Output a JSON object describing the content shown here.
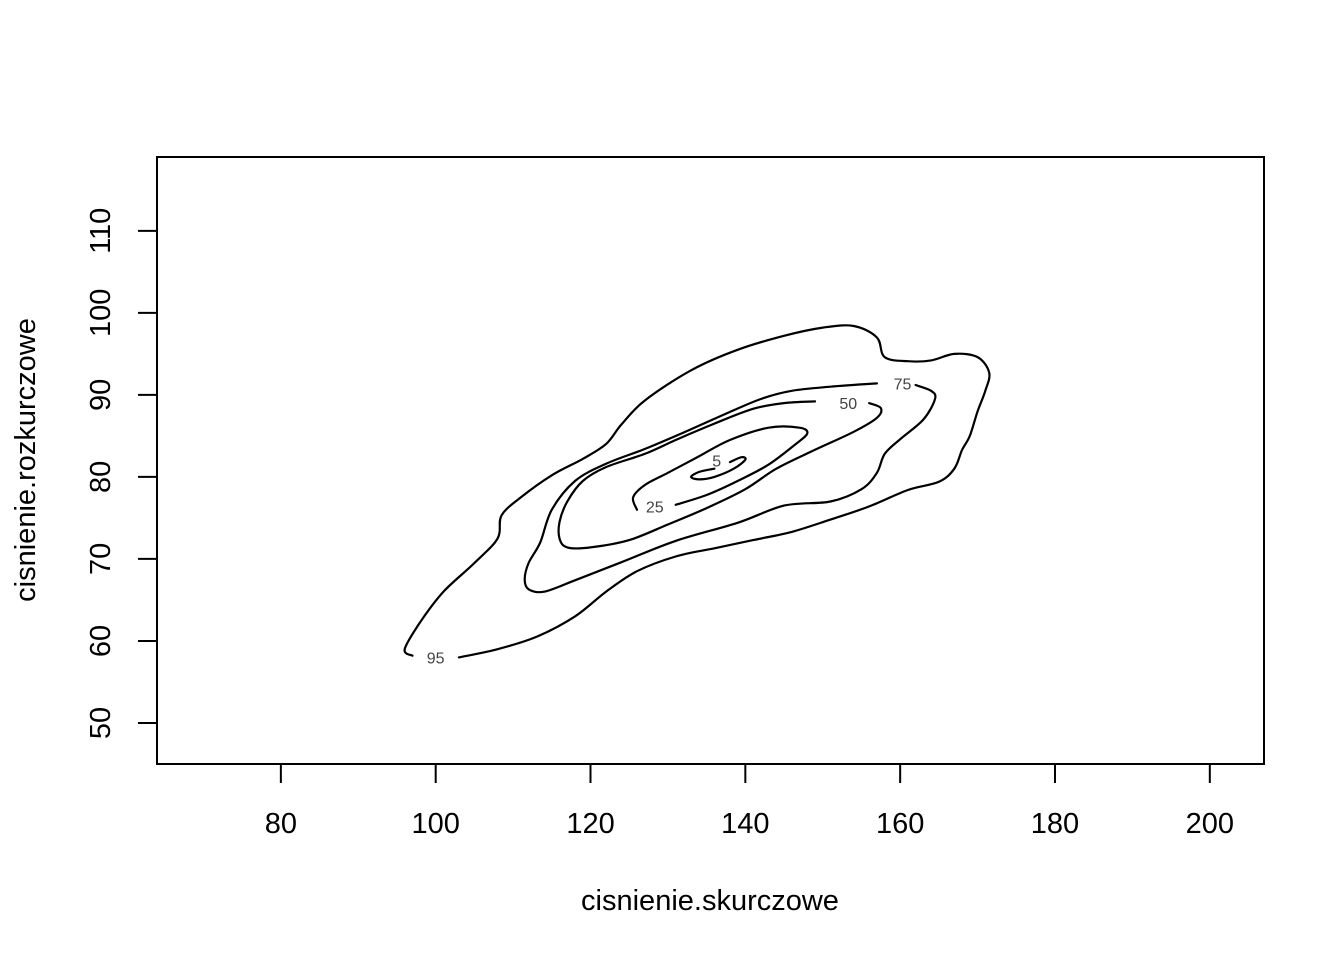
{
  "chart_data": {
    "type": "contour",
    "title": "",
    "xlabel": "cisnienie.skurczowe",
    "ylabel": "cisnienie.rozkurczowe",
    "xlim": [
      64,
      207
    ],
    "ylim": [
      45,
      119
    ],
    "xticks": [
      80,
      100,
      120,
      140,
      160,
      180,
      200
    ],
    "yticks": [
      50,
      60,
      70,
      80,
      90,
      100,
      110
    ],
    "grid": false,
    "legend": "none",
    "line_color": "#000000",
    "contours": [
      {
        "level": "95",
        "label_at": [
          100,
          58
        ],
        "points": [
          [
            103,
            58
          ],
          [
            108,
            59
          ],
          [
            113,
            60.5
          ],
          [
            118,
            63
          ],
          [
            122,
            66
          ],
          [
            126,
            68.5
          ],
          [
            131,
            70.3
          ],
          [
            136,
            71.3
          ],
          [
            141,
            72.3
          ],
          [
            146,
            73.3
          ],
          [
            151,
            74.8
          ],
          [
            156,
            76.4
          ],
          [
            161,
            78.4
          ],
          [
            165,
            79.4
          ],
          [
            167,
            81
          ],
          [
            168,
            83.3
          ],
          [
            169,
            85
          ],
          [
            170,
            88
          ],
          [
            171,
            90.5
          ],
          [
            171.5,
            92.7
          ],
          [
            170,
            94.6
          ],
          [
            167,
            95
          ],
          [
            164,
            94.2
          ],
          [
            161,
            94.1
          ],
          [
            158,
            94.6
          ],
          [
            157,
            97
          ],
          [
            154,
            98.4
          ],
          [
            150,
            98.2
          ],
          [
            145,
            97.2
          ],
          [
            139,
            95.5
          ],
          [
            133,
            93
          ],
          [
            127,
            89.3
          ],
          [
            124,
            86.4
          ],
          [
            122,
            84
          ],
          [
            119,
            82.2
          ],
          [
            115,
            80.2
          ],
          [
            111,
            77.5
          ],
          [
            108.5,
            75.3
          ],
          [
            108,
            72.5
          ],
          [
            105,
            69.5
          ],
          [
            101,
            66
          ],
          [
            98,
            62.3
          ],
          [
            96,
            59
          ],
          [
            97,
            58.2
          ]
        ]
      },
      {
        "level": "75",
        "points": [
          [
            162,
            91.2
          ],
          [
            164,
            90.5
          ],
          [
            164.5,
            89.5
          ],
          [
            163,
            87
          ],
          [
            160,
            84.6
          ],
          [
            158,
            82.8
          ],
          [
            157,
            80.5
          ],
          [
            155,
            78.5
          ],
          [
            151,
            77
          ],
          [
            145,
            76.5
          ],
          [
            139,
            74.4
          ],
          [
            131,
            72.2
          ],
          [
            124,
            69.6
          ],
          [
            118,
            67.4
          ],
          [
            114,
            66
          ],
          [
            112,
            66.3
          ],
          [
            111.5,
            67.5
          ],
          [
            112,
            69.5
          ],
          [
            113.5,
            72
          ],
          [
            115,
            76
          ],
          [
            118,
            79.5
          ],
          [
            122,
            81.6
          ],
          [
            127,
            83.4
          ],
          [
            132,
            85.4
          ],
          [
            137,
            87.5
          ],
          [
            142,
            89.5
          ],
          [
            146,
            90.5
          ],
          [
            151,
            91
          ],
          [
            157,
            91.4
          ]
        ]
      },
      {
        "level": "50",
        "points": [
          [
            156,
            89
          ],
          [
            157.5,
            88.4
          ],
          [
            157,
            87.2
          ],
          [
            154,
            85.5
          ],
          [
            149,
            83.3
          ],
          [
            144,
            81
          ],
          [
            140,
            78.5
          ],
          [
            135,
            76.2
          ],
          [
            130,
            74.2
          ],
          [
            125,
            72.3
          ],
          [
            120,
            71.4
          ],
          [
            117,
            71.4
          ],
          [
            116,
            72.5
          ],
          [
            116,
            74.5
          ],
          [
            117,
            77
          ],
          [
            119,
            79.5
          ],
          [
            122,
            81.2
          ],
          [
            127,
            82.8
          ],
          [
            131,
            84.5
          ],
          [
            136,
            86.5
          ],
          [
            141,
            88.3
          ],
          [
            145,
            89
          ],
          [
            149,
            89.2
          ]
        ]
      },
      {
        "level": "25",
        "points": [
          [
            131,
            76.6
          ],
          [
            135,
            77.8
          ],
          [
            139,
            79.5
          ],
          [
            143,
            81.5
          ],
          [
            146.5,
            84
          ],
          [
            148,
            85.3
          ],
          [
            147,
            86
          ],
          [
            143,
            86
          ],
          [
            138,
            84.5
          ],
          [
            134,
            82.5
          ],
          [
            130,
            80.5
          ],
          [
            127,
            79
          ],
          [
            125.5,
            77.5
          ],
          [
            126,
            76
          ]
        ]
      },
      {
        "level": "5",
        "points": [
          [
            138,
            81.8
          ],
          [
            139.5,
            82.4
          ],
          [
            140,
            82.1
          ],
          [
            138.5,
            81
          ],
          [
            136,
            80
          ],
          [
            134,
            79.7
          ],
          [
            133,
            80
          ],
          [
            134,
            80.6
          ],
          [
            136,
            81
          ]
        ]
      }
    ],
    "labels": [
      {
        "text": "95",
        "x": 100,
        "y": 58
      },
      {
        "text": "75",
        "x": 160.3,
        "y": 91.4
      },
      {
        "text": "50",
        "x": 153.3,
        "y": 89
      },
      {
        "text": "25",
        "x": 128.3,
        "y": 76.4
      },
      {
        "text": "5",
        "x": 136.3,
        "y": 82
      }
    ]
  }
}
